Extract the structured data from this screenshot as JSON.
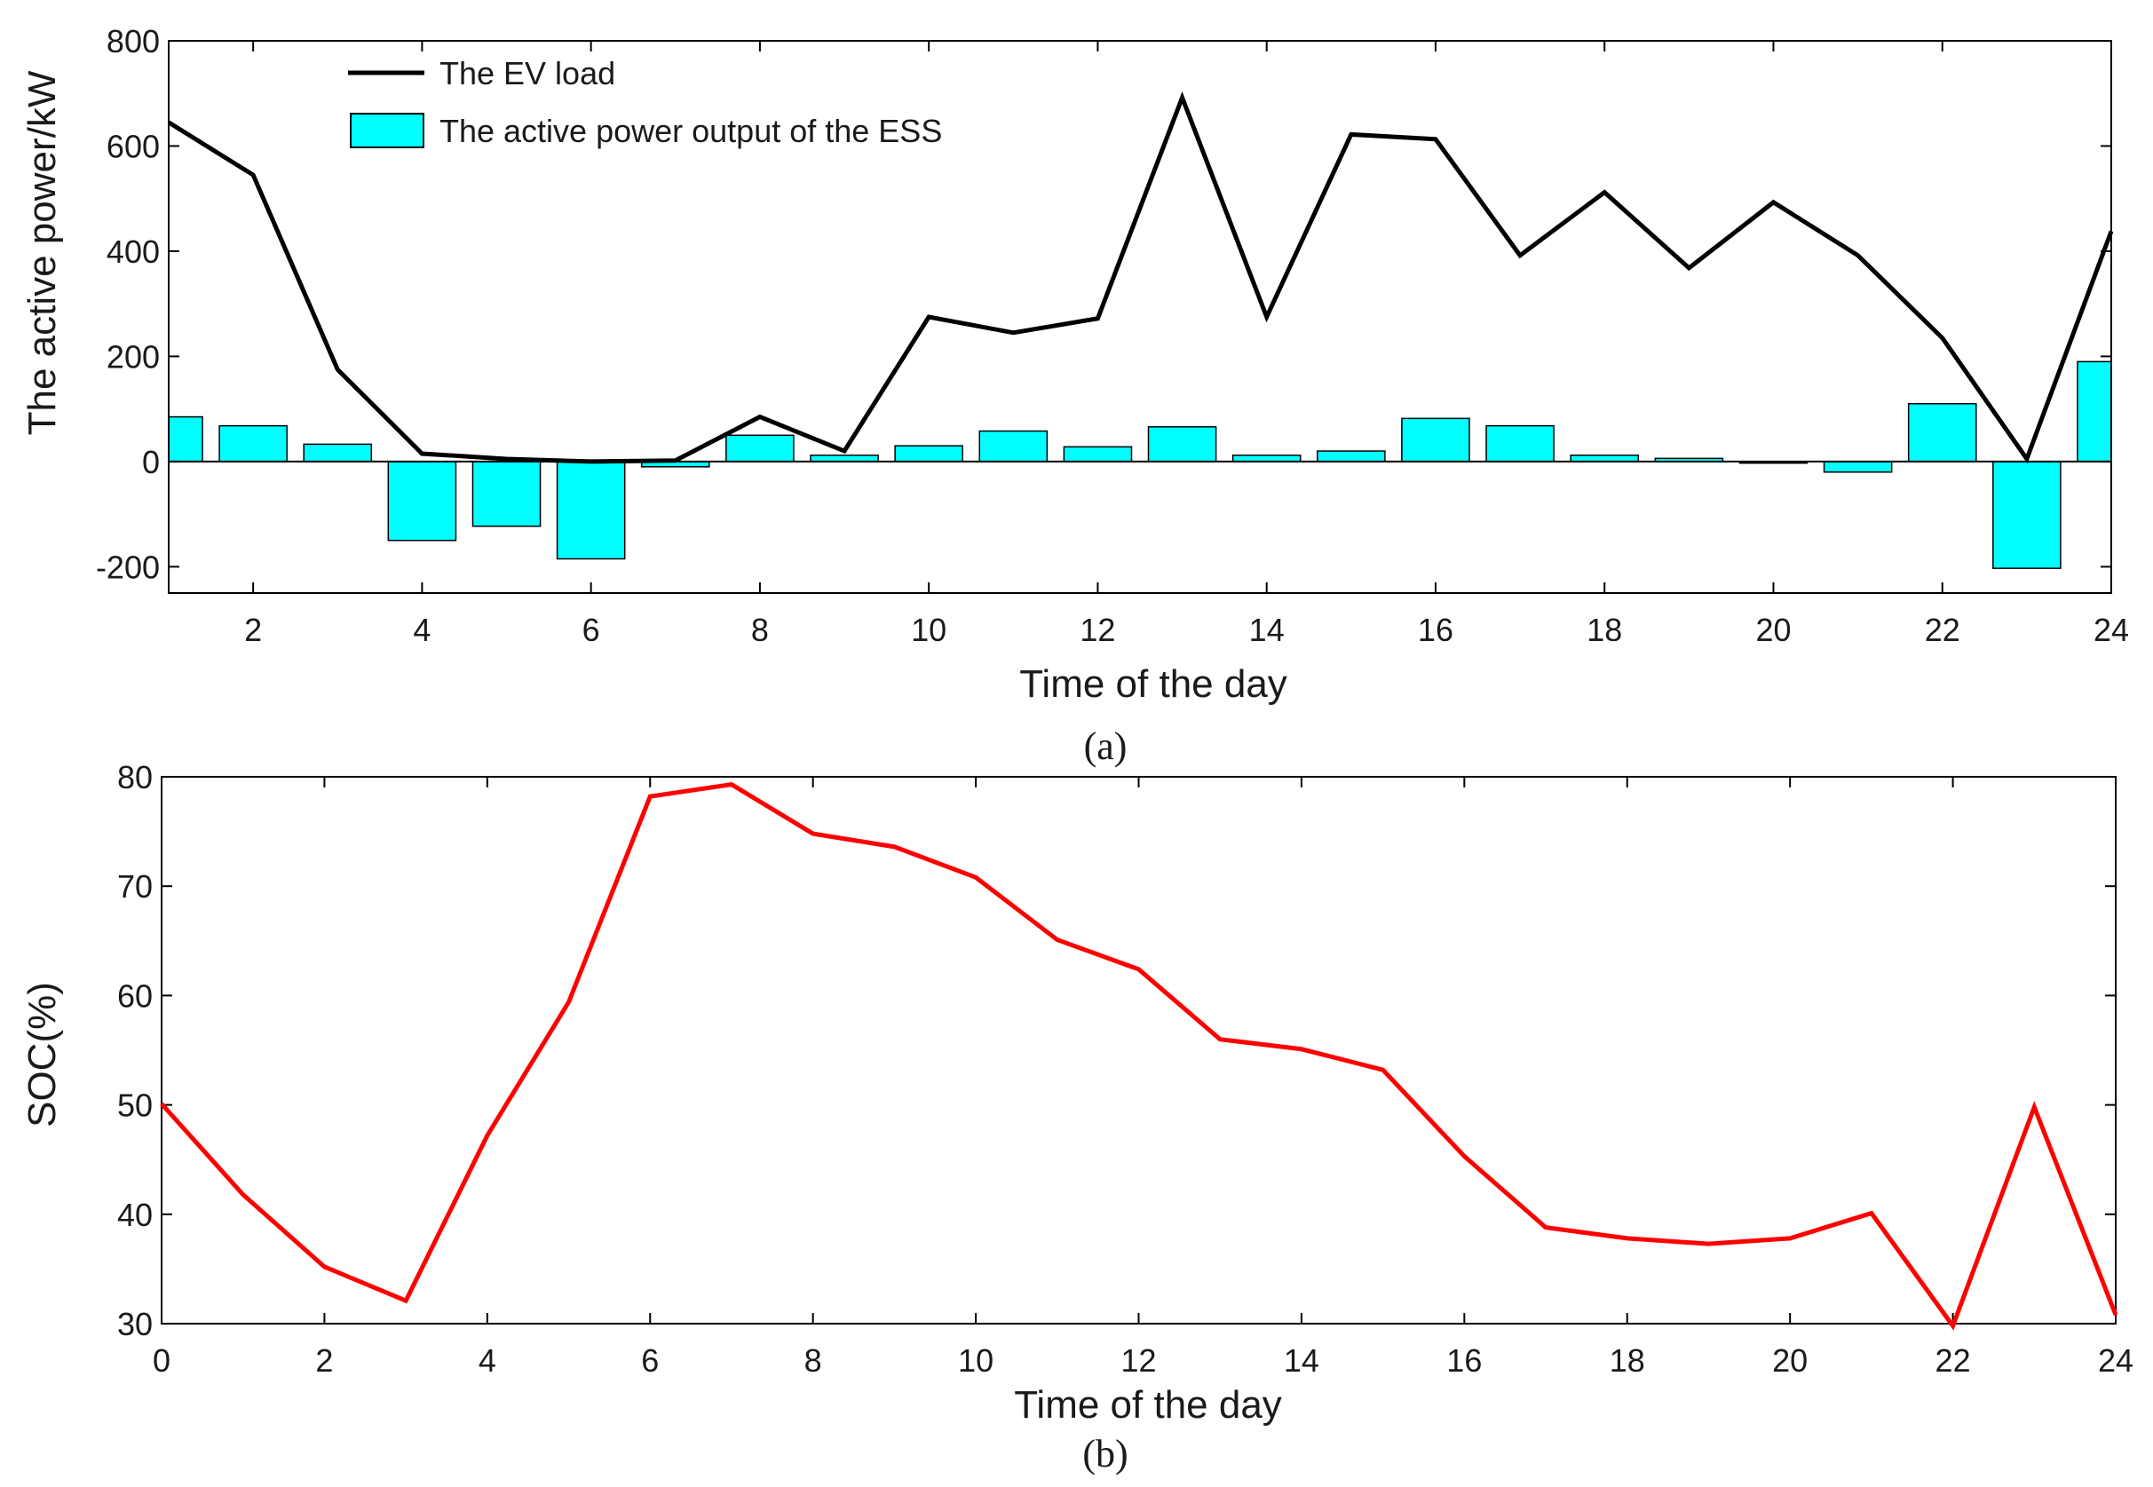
{
  "chart_data": [
    {
      "id": "a",
      "type": "line+bar",
      "caption": "(a)",
      "xlabel": "Time of the day",
      "ylabel": "The active power/kW",
      "xlim": [
        1,
        24
      ],
      "ylim": [
        -250,
        800
      ],
      "xticks": [
        2,
        4,
        6,
        8,
        10,
        12,
        14,
        16,
        18,
        20,
        22,
        24
      ],
      "yticks": [
        -200,
        0,
        200,
        400,
        600,
        800
      ],
      "legend_position": "top-left",
      "colors": {
        "line": "#000000",
        "bar": "#00FFFF",
        "bar_edge": "#000000"
      },
      "series": [
        {
          "name": "The EV load",
          "kind": "line",
          "x": [
            1,
            2,
            3,
            4,
            5,
            6,
            7,
            8,
            9,
            10,
            11,
            12,
            13,
            14,
            15,
            16,
            17,
            18,
            19,
            20,
            21,
            22,
            23,
            24
          ],
          "values": [
            645,
            545,
            175,
            15,
            5,
            0,
            2,
            85,
            20,
            275,
            245,
            272,
            692,
            275,
            622,
            613,
            392,
            512,
            368,
            493,
            392,
            235,
            5,
            438
          ]
        },
        {
          "name": "The active power output of the ESS",
          "kind": "bar",
          "x": [
            1,
            2,
            3,
            4,
            5,
            6,
            7,
            8,
            9,
            10,
            11,
            12,
            13,
            14,
            15,
            16,
            17,
            18,
            19,
            20,
            21,
            22,
            23,
            24
          ],
          "values": [
            85,
            68,
            33,
            -150,
            -123,
            -185,
            -10,
            50,
            12,
            30,
            58,
            28,
            66,
            12,
            20,
            82,
            68,
            12,
            6,
            -3,
            -20,
            110,
            -203,
            190
          ]
        }
      ]
    },
    {
      "id": "b",
      "type": "line",
      "caption": "(b)",
      "xlabel": "Time of the day",
      "ylabel": "SOC(%)",
      "xlim": [
        0,
        24
      ],
      "ylim": [
        30,
        80
      ],
      "xticks": [
        0,
        2,
        4,
        6,
        8,
        10,
        12,
        14,
        16,
        18,
        20,
        22,
        24
      ],
      "yticks": [
        30,
        40,
        50,
        60,
        70,
        80
      ],
      "colors": {
        "line": "#FF0000"
      },
      "series": [
        {
          "name": "SOC",
          "kind": "line",
          "x": [
            0,
            1,
            2,
            3,
            4,
            5,
            6,
            7,
            8,
            9,
            10,
            11,
            12,
            13,
            14,
            15,
            16,
            17,
            18,
            19,
            20,
            21,
            22,
            23,
            24
          ],
          "values": [
            50.1,
            41.8,
            35.2,
            32.1,
            47.2,
            59.4,
            78.2,
            79.3,
            74.8,
            73.6,
            70.8,
            65.1,
            62.4,
            56.0,
            55.1,
            53.2,
            45.3,
            38.8,
            37.8,
            37.3,
            37.8,
            40.1,
            29.8,
            49.8,
            30.8
          ]
        }
      ]
    }
  ]
}
